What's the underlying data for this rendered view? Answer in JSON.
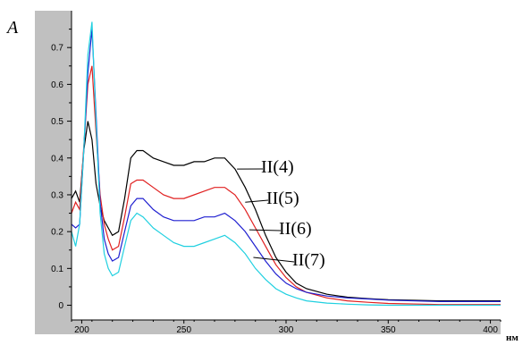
{
  "chart_data": {
    "type": "line",
    "ylabel": "A",
    "xunit": "нм",
    "xlim": [
      195,
      405
    ],
    "ylim": [
      -0.04,
      0.8
    ],
    "x_ticks": [
      200,
      250,
      300,
      350,
      400
    ],
    "y_ticks": [
      0,
      0.1,
      0.2,
      0.3,
      0.4,
      0.5,
      0.6,
      0.7
    ],
    "grid": false,
    "x_tick_labels": [
      "200",
      "250",
      "300",
      "350",
      "400"
    ],
    "y_tick_labels": [
      "0",
      "0.1",
      "0.2",
      "0.3",
      "0.4",
      "0.5",
      "0.6",
      "0.7"
    ],
    "colors": {
      "plot_bg": "#ffffff",
      "frame_bg": "#c0c0c0",
      "axis": "#000000"
    },
    "series": [
      {
        "name": "II(4)",
        "color": "#000000",
        "label_point": [
          276,
          0.37
        ],
        "x": [
          195,
          197,
          199,
          201,
          203,
          205,
          207,
          209,
          211,
          213,
          215,
          218,
          221,
          224,
          227,
          230,
          235,
          240,
          245,
          250,
          255,
          260,
          265,
          270,
          275,
          280,
          285,
          290,
          295,
          300,
          305,
          310,
          320,
          330,
          340,
          350,
          375,
          405
        ],
        "y": [
          0.29,
          0.31,
          0.28,
          0.42,
          0.5,
          0.45,
          0.33,
          0.27,
          0.23,
          0.21,
          0.19,
          0.2,
          0.29,
          0.4,
          0.42,
          0.42,
          0.4,
          0.39,
          0.38,
          0.38,
          0.39,
          0.39,
          0.4,
          0.4,
          0.37,
          0.32,
          0.26,
          0.19,
          0.13,
          0.09,
          0.06,
          0.045,
          0.03,
          0.022,
          0.018,
          0.015,
          0.012,
          0.012
        ]
      },
      {
        "name": "II(5)",
        "color": "#e02020",
        "label_point": [
          280,
          0.28
        ],
        "x": [
          195,
          197,
          199,
          201,
          203,
          205,
          207,
          209,
          211,
          213,
          215,
          218,
          221,
          224,
          227,
          230,
          235,
          240,
          245,
          250,
          255,
          260,
          265,
          270,
          275,
          280,
          285,
          290,
          295,
          300,
          305,
          310,
          320,
          330,
          340,
          350,
          375,
          405
        ],
        "y": [
          0.25,
          0.28,
          0.26,
          0.43,
          0.6,
          0.65,
          0.47,
          0.3,
          0.22,
          0.18,
          0.15,
          0.16,
          0.24,
          0.33,
          0.34,
          0.34,
          0.32,
          0.3,
          0.29,
          0.29,
          0.3,
          0.31,
          0.32,
          0.32,
          0.3,
          0.26,
          0.21,
          0.16,
          0.11,
          0.075,
          0.05,
          0.035,
          0.02,
          0.012,
          0.008,
          0.005,
          0.002,
          0.002
        ]
      },
      {
        "name": "II(6)",
        "color": "#2020d0",
        "label_point": [
          282,
          0.205
        ],
        "x": [
          195,
          197,
          199,
          201,
          203,
          205,
          207,
          209,
          211,
          213,
          215,
          218,
          221,
          224,
          227,
          230,
          235,
          240,
          245,
          250,
          255,
          260,
          265,
          270,
          275,
          280,
          285,
          290,
          295,
          300,
          305,
          310,
          320,
          330,
          340,
          350,
          375,
          405
        ],
        "y": [
          0.22,
          0.21,
          0.22,
          0.42,
          0.63,
          0.75,
          0.52,
          0.28,
          0.18,
          0.14,
          0.12,
          0.13,
          0.2,
          0.27,
          0.29,
          0.29,
          0.26,
          0.24,
          0.23,
          0.23,
          0.23,
          0.24,
          0.24,
          0.25,
          0.23,
          0.2,
          0.16,
          0.12,
          0.085,
          0.06,
          0.045,
          0.035,
          0.025,
          0.02,
          0.017,
          0.014,
          0.01,
          0.01
        ]
      },
      {
        "name": "II(7)",
        "color": "#20d0e0",
        "label_point": [
          284,
          0.13
        ],
        "x": [
          195,
          197,
          199,
          201,
          203,
          205,
          207,
          209,
          211,
          213,
          215,
          218,
          221,
          224,
          227,
          230,
          235,
          240,
          245,
          250,
          255,
          260,
          265,
          270,
          275,
          280,
          285,
          290,
          295,
          300,
          305,
          310,
          320,
          330,
          340,
          350,
          375,
          405
        ],
        "y": [
          0.2,
          0.16,
          0.22,
          0.42,
          0.68,
          0.77,
          0.5,
          0.25,
          0.14,
          0.1,
          0.08,
          0.09,
          0.16,
          0.23,
          0.25,
          0.24,
          0.21,
          0.19,
          0.17,
          0.16,
          0.16,
          0.17,
          0.18,
          0.19,
          0.17,
          0.14,
          0.1,
          0.07,
          0.045,
          0.03,
          0.02,
          0.012,
          0.006,
          0.003,
          0.001,
          0.0,
          0.0,
          0.0
        ]
      }
    ]
  }
}
